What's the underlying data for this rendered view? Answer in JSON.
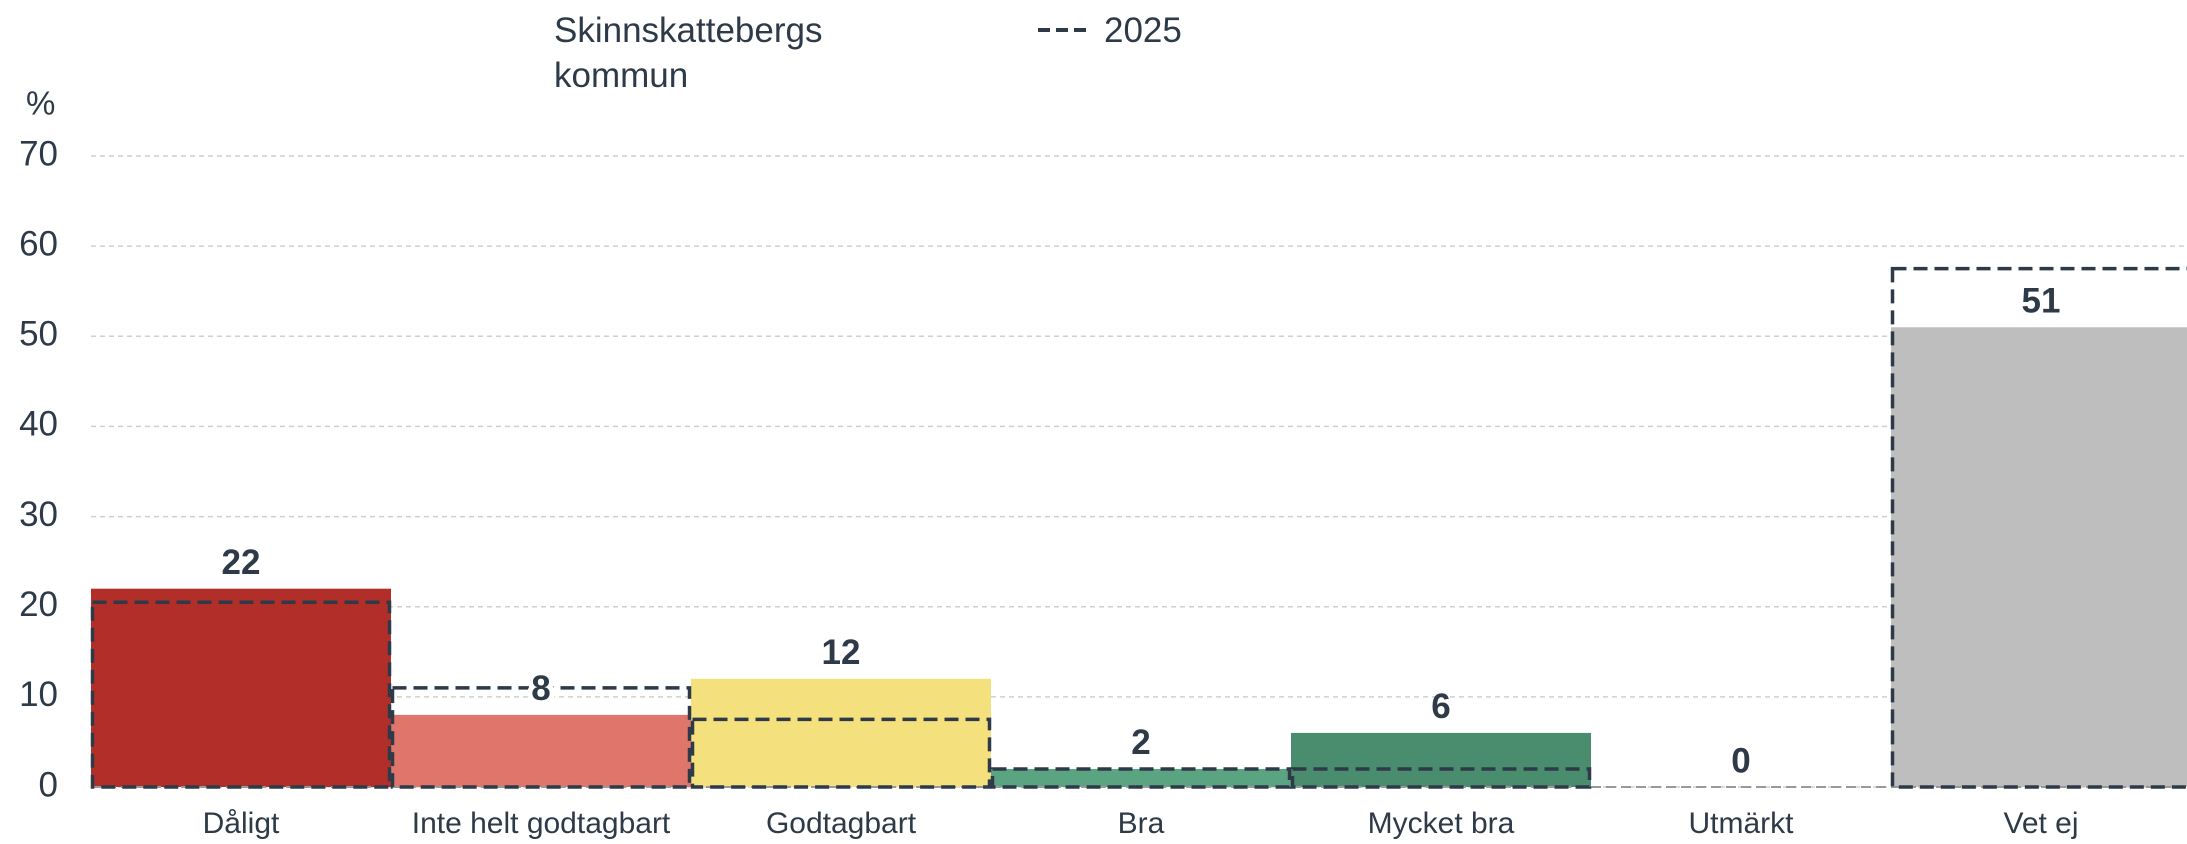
{
  "chart_data": {
    "type": "bar",
    "y_label": "%",
    "categories": [
      "Dåligt",
      "Inte helt godtagbart",
      "Godtagbart",
      "Bra",
      "Mycket bra",
      "Utmärkt",
      "Vet ej"
    ],
    "series": [
      {
        "name": "Skinnskattebergs kommun",
        "colors": [
          "#b22e28",
          "#e0756c",
          "#f5e07e",
          "#5ba482",
          "#4a8c6e",
          "#3f7d60",
          "#bebebe"
        ],
        "values": [
          22,
          8,
          12,
          2,
          6,
          0,
          51
        ]
      },
      {
        "name": "2025",
        "color": "#2e3a48",
        "style": "dashed",
        "values": [
          20.5,
          11,
          7.5,
          2,
          2,
          0,
          57.5
        ]
      }
    ],
    "ylim": [
      0,
      70
    ],
    "yticks": [
      0,
      10,
      20,
      30,
      40,
      50,
      60,
      70
    ],
    "grid": true
  }
}
